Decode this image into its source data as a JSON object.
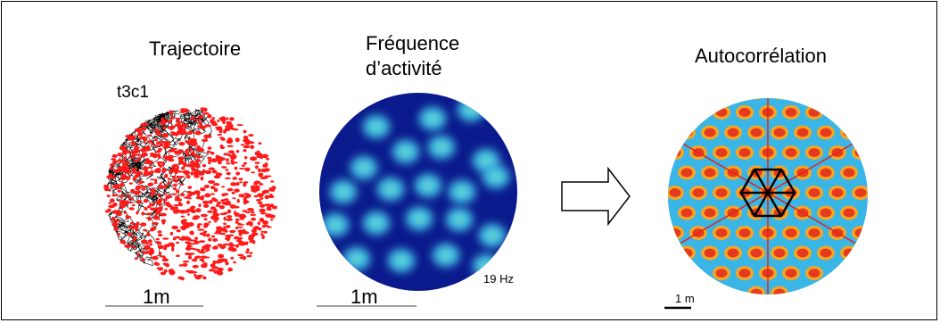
{
  "panels": {
    "trajectory": {
      "title": "Trajectoire",
      "cell_id": "t3c1",
      "scale_label": "1m"
    },
    "rate_map": {
      "title_line1": "Fréquence",
      "title_line2": "d’activité",
      "scale_label": "1m",
      "max_rate": "19 Hz"
    },
    "autocorrelation": {
      "title": "Autocorrélation",
      "scale_label": "1 m"
    }
  },
  "colors": {
    "path": "#000000",
    "spikes": "#ff1a1a",
    "map_background": "#0a1a8c",
    "map_field": "#46c8e6",
    "map_peak": "#f2e64a",
    "autocorr_background": "#3ab6e6",
    "autocorr_peak": "#e63a1f",
    "autocorr_ring": "#f5a623",
    "axis_line": "#e0231c",
    "hexagon": "#000000"
  }
}
